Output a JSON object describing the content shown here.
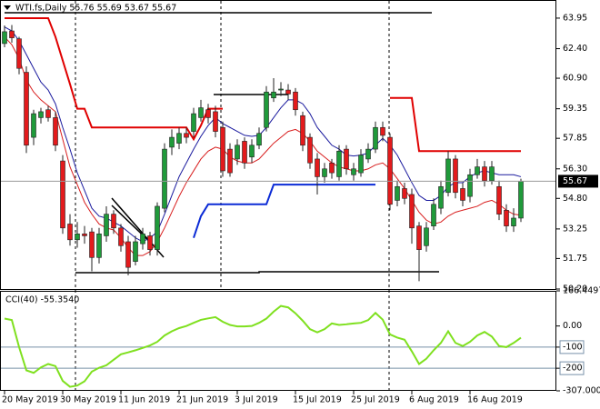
{
  "chart_data": [
    {
      "type": "candlestick",
      "title": "WTI.fs,Daily  55.76 55.69 53.67 55.67",
      "open": [
        62.66,
        63.3,
        62.9,
        61.2,
        57.9,
        58.9,
        59.3,
        58.9,
        56.7,
        53.5,
        52.7,
        53.0,
        53.1,
        51.8,
        52.9,
        54.0,
        53.3,
        52.6,
        51.6,
        52.5,
        52.9,
        52.2,
        54.3,
        57.4,
        57.6,
        58.1,
        58.2,
        58.9,
        59.3,
        59.2,
        58.4,
        57.3,
        56.8,
        57.7,
        56.9,
        57.5,
        58.4,
        59.9,
        60.3,
        60.3,
        60.2,
        59.0,
        57.9,
        56.8,
        55.9,
        56.6,
        55.9,
        57.3,
        56.0,
        56.1,
        56.8,
        57.3,
        58.4,
        57.9,
        54.7,
        55.3,
        55.0,
        53.4,
        52.4,
        53.4,
        54.3,
        55.1,
        56.8,
        55.3,
        54.9,
        56.0,
        56.4,
        55.7,
        55.4,
        54.2,
        53.4,
        53.8
      ],
      "high": [
        63.58,
        63.6,
        63.0,
        61.5,
        59.3,
        59.4,
        59.5,
        59.2,
        57.0,
        54.0,
        53.6,
        53.4,
        53.3,
        53.3,
        54.4,
        54.2,
        53.5,
        52.9,
        52.9,
        53.3,
        53.1,
        54.6,
        57.6,
        58.3,
        58.4,
        58.4,
        59.4,
        59.8,
        59.6,
        59.5,
        58.7,
        57.6,
        57.8,
        57.9,
        57.8,
        58.4,
        60.5,
        60.9,
        60.7,
        60.6,
        60.4,
        59.2,
        58.1,
        57.1,
        56.6,
        56.8,
        57.5,
        57.5,
        56.6,
        57.3,
        57.6,
        58.7,
        58.7,
        58.1,
        55.7,
        55.6,
        55.3,
        53.6,
        53.6,
        54.8,
        55.7,
        57.2,
        57.0,
        55.6,
        56.3,
        56.8,
        56.7,
        56.7,
        55.7,
        54.5,
        54.3,
        55.8
      ],
      "low": [
        62.47,
        62.7,
        61.1,
        57.1,
        57.5,
        58.6,
        58.7,
        57.2,
        53.0,
        52.4,
        52.3,
        52.5,
        51.1,
        51.5,
        52.6,
        53.0,
        52.1,
        50.9,
        51.4,
        52.2,
        51.9,
        51.9,
        54.1,
        57.0,
        57.3,
        57.6,
        57.9,
        58.7,
        58.6,
        57.9,
        55.9,
        55.9,
        56.5,
        56.3,
        56.6,
        57.3,
        58.2,
        59.7,
        60.0,
        59.8,
        59.0,
        57.2,
        56.3,
        55.0,
        55.6,
        55.8,
        55.7,
        56.0,
        55.7,
        55.9,
        56.6,
        57.1,
        57.7,
        54.2,
        54.4,
        54.5,
        52.5,
        50.6,
        52.1,
        53.2,
        54.0,
        54.9,
        54.8,
        54.4,
        54.6,
        55.8,
        55.4,
        55.5,
        53.7,
        53.1,
        53.1,
        53.6
      ],
      "close": [
        63.26,
        62.95,
        61.4,
        57.5,
        59.1,
        59.2,
        58.9,
        57.5,
        53.3,
        52.7,
        53.0,
        52.9,
        51.8,
        53.0,
        54.0,
        53.3,
        52.4,
        51.3,
        52.6,
        53.0,
        52.2,
        54.4,
        57.3,
        57.9,
        58.1,
        57.9,
        59.1,
        59.4,
        58.9,
        58.2,
        56.2,
        56.1,
        57.5,
        56.6,
        57.5,
        58.1,
        60.2,
        60.2,
        60.35,
        60.1,
        59.3,
        57.5,
        56.6,
        55.9,
        56.3,
        56.1,
        57.2,
        56.3,
        56.3,
        57.0,
        57.3,
        58.4,
        58.0,
        54.5,
        55.4,
        54.8,
        53.3,
        52.2,
        53.3,
        54.5,
        55.4,
        56.8,
        55.1,
        54.7,
        56.0,
        56.4,
        55.7,
        56.4,
        54.0,
        53.4,
        53.8,
        55.67
      ],
      "up_color": "#1f9a3a",
      "down_color": "#e31a1c",
      "lines": [
        {
          "color": "#1a1a9e",
          "values": [
            63.5,
            63.3,
            62.8,
            62.1,
            61.4,
            60.7,
            60.3,
            59.6,
            58.4,
            57.3,
            56.1,
            55.2,
            54.3,
            53.9,
            53.8,
            53.6,
            53.4,
            53.1,
            52.8,
            52.6,
            52.8,
            53.1,
            54.0,
            54.95,
            55.9,
            56.6,
            57.3,
            57.95,
            58.5,
            58.9,
            58.6,
            58.4,
            58.2,
            58.0,
            57.95,
            58.0,
            58.4,
            58.9,
            59.4,
            59.8,
            59.8,
            59.6,
            59.1,
            58.4,
            57.95,
            57.5,
            57.3,
            57.0,
            56.95,
            57.0,
            57.1,
            57.5,
            57.85,
            57.5,
            57.0,
            56.3,
            55.6,
            54.95,
            54.7,
            54.7,
            54.95,
            55.4,
            55.6,
            55.6,
            55.9,
            56.1,
            56.2,
            56.1,
            56.0,
            56.0,
            56.0,
            55.9
          ]
        },
        {
          "color": "#d81e1e",
          "values": [
            63.0,
            62.6,
            61.9,
            60.8,
            60.2,
            59.8,
            59.5,
            59.2,
            57.8,
            56.4,
            55.5,
            54.6,
            54.0,
            53.5,
            53.3,
            53.2,
            52.8,
            52.3,
            51.9,
            51.9,
            52.1,
            52.6,
            53.3,
            54.1,
            54.9,
            55.6,
            56.2,
            56.8,
            57.2,
            57.4,
            57.3,
            56.9,
            56.7,
            56.6,
            56.6,
            56.8,
            57.2,
            57.6,
            57.9,
            58.2,
            58.3,
            58.1,
            57.7,
            57.2,
            56.9,
            56.6,
            56.4,
            56.3,
            56.2,
            56.2,
            56.3,
            56.5,
            56.6,
            56.3,
            55.8,
            55.3,
            54.7,
            54.1,
            53.7,
            53.5,
            53.6,
            53.9,
            54.1,
            54.2,
            54.3,
            54.4,
            54.6,
            54.7,
            54.5,
            54.2,
            54.0,
            53.95
          ]
        },
        {
          "color": "#e00000",
          "width": 2,
          "values": [
            63.95,
            63.95,
            63.95,
            63.95,
            63.95,
            63.95,
            63.95,
            63.0,
            61.8,
            60.6,
            59.35,
            59.35,
            58.4,
            58.4,
            58.4,
            58.4,
            58.4,
            58.4,
            58.4,
            58.4,
            58.4,
            58.4,
            58.4,
            58.4,
            58.4,
            58.4,
            57.8,
            58.5,
            59.35,
            59.35,
            59.35,
            null,
            null,
            null,
            null,
            null,
            null,
            null,
            null,
            null,
            null,
            null,
            null,
            null,
            null,
            null,
            null,
            null,
            null,
            null,
            null,
            null,
            null,
            59.9,
            59.9,
            59.9,
            59.9,
            57.2,
            57.2,
            57.2,
            57.2,
            57.2,
            57.2,
            57.2,
            57.2,
            57.2,
            57.2,
            57.2,
            57.2,
            57.2,
            57.2,
            57.2
          ]
        },
        {
          "color": "#0b2bd6",
          "width": 2,
          "values": [
            null,
            null,
            null,
            null,
            null,
            null,
            null,
            null,
            null,
            null,
            null,
            null,
            null,
            null,
            null,
            null,
            null,
            null,
            null,
            null,
            null,
            null,
            null,
            null,
            null,
            null,
            52.8,
            53.9,
            54.5,
            54.5,
            54.5,
            54.5,
            54.5,
            54.5,
            54.5,
            54.5,
            54.5,
            55.5,
            55.5,
            55.5,
            55.5,
            55.5,
            55.5,
            55.5,
            55.5,
            55.5,
            55.5,
            55.5,
            55.5,
            55.5,
            55.5,
            55.5,
            null,
            null,
            null,
            null,
            null,
            null,
            null,
            null,
            null,
            null,
            null,
            null,
            null,
            null,
            null,
            null,
            null,
            null,
            null,
            null
          ]
        }
      ],
      "last_price": 55.67,
      "ylim": [
        50.2,
        64.87
      ],
      "yticks": [
        63.95,
        {
          "value": 62.4,
          "label": "62.40"
        },
        {
          "value": 60.9,
          "label": "60.90"
        },
        59.35,
        57.85,
        {
          "value": 56.3,
          "label": "56.30"
        },
        {
          "value": 54.8,
          "label": "54.80"
        },
        53.25,
        51.75,
        {
          "value": 50.2,
          "label": "50.20"
        }
      ]
    },
    {
      "type": "line",
      "title": "CCI(40) -55.3540",
      "color": "#7fe01f",
      "categories": [
        "20 May 2019",
        null,
        null,
        null,
        null,
        null,
        null,
        null,
        "30 May 2019",
        null,
        null,
        null,
        null,
        null,
        null,
        null,
        "11 Jun 2019",
        null,
        null,
        null,
        null,
        null,
        null,
        null,
        "21 Jun 2019",
        null,
        null,
        null,
        null,
        null,
        null,
        null,
        "3 Jul 2019",
        null,
        null,
        null,
        null,
        null,
        null,
        null,
        "15 Jul 2019",
        null,
        null,
        null,
        null,
        null,
        null,
        null,
        "25 Jul 2019",
        null,
        null,
        null,
        null,
        null,
        null,
        null,
        "6 Aug 2019",
        null,
        null,
        null,
        null,
        null,
        null,
        null,
        "16 Aug 2019",
        null,
        null,
        null,
        null,
        null,
        null,
        null
      ],
      "values": [
        35,
        28,
        -100,
        -210,
        -222,
        -196,
        -180,
        -190,
        -260,
        -288,
        -282,
        -262,
        -216,
        -198,
        -186,
        -160,
        -134,
        -125,
        -115,
        -104,
        -92,
        -75,
        -45,
        -25,
        -10,
        0,
        15,
        29,
        36,
        42,
        20,
        5,
        -2,
        -2,
        0,
        15,
        35,
        68,
        95,
        88,
        60,
        25,
        -15,
        -30,
        -15,
        12,
        5,
        8,
        12,
        15,
        28,
        62,
        30,
        -40,
        -55,
        -65,
        -120,
        -180,
        -155,
        -115,
        -80,
        -25,
        -80,
        -95,
        -75,
        -45,
        -28,
        -50,
        -95,
        -100,
        -80,
        -55.354
      ],
      "levels": [
        -100,
        -200
      ],
      "level_color": "#7890a8",
      "ylim": [
        -307,
        166.4497
      ],
      "yticks": [
        166.4497,
        {
          "value": 0,
          "label": "0.00"
        },
        -100,
        -200,
        {
          "value": -307,
          "label": "-307.000"
        }
      ]
    }
  ]
}
